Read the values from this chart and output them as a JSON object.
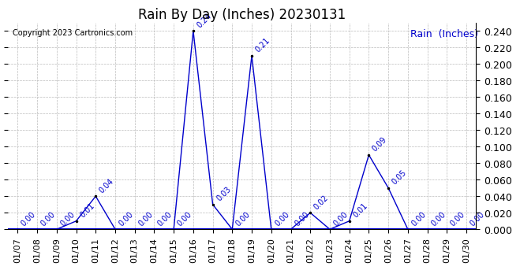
{
  "title": "Rain By Day (Inches) 20230131",
  "copyright_text": "Copyright 2023 Cartronics.com",
  "legend_label": "Rain  (Inches)",
  "dates": [
    "01/07",
    "01/08",
    "01/09",
    "01/10",
    "01/11",
    "01/12",
    "01/13",
    "01/14",
    "01/15",
    "01/16",
    "01/17",
    "01/18",
    "01/19",
    "01/20",
    "01/21",
    "01/22",
    "01/23",
    "01/24",
    "01/25",
    "01/26",
    "01/27",
    "01/28",
    "01/29",
    "01/30"
  ],
  "values": [
    0.0,
    0.0,
    0.0,
    0.01,
    0.04,
    0.0,
    0.0,
    0.0,
    0.0,
    0.24,
    0.03,
    0.0,
    0.21,
    0.0,
    0.0,
    0.02,
    0.0,
    0.01,
    0.09,
    0.05,
    0.0,
    0.0,
    0.0,
    0.0
  ],
  "line_color": "#0000cc",
  "marker_color": "#000000",
  "annotation_color": "#0000cc",
  "background_color": "#ffffff",
  "grid_color": "#bbbbbb",
  "ylim": [
    0.0,
    0.25
  ],
  "yticks": [
    0.0,
    0.02,
    0.04,
    0.06,
    0.08,
    0.1,
    0.12,
    0.14,
    0.16,
    0.18,
    0.2,
    0.22,
    0.24
  ],
  "title_fontsize": 12,
  "annotation_fontsize": 7,
  "tick_fontsize": 8,
  "legend_fontsize": 9,
  "right_ytick_fontsize": 9
}
